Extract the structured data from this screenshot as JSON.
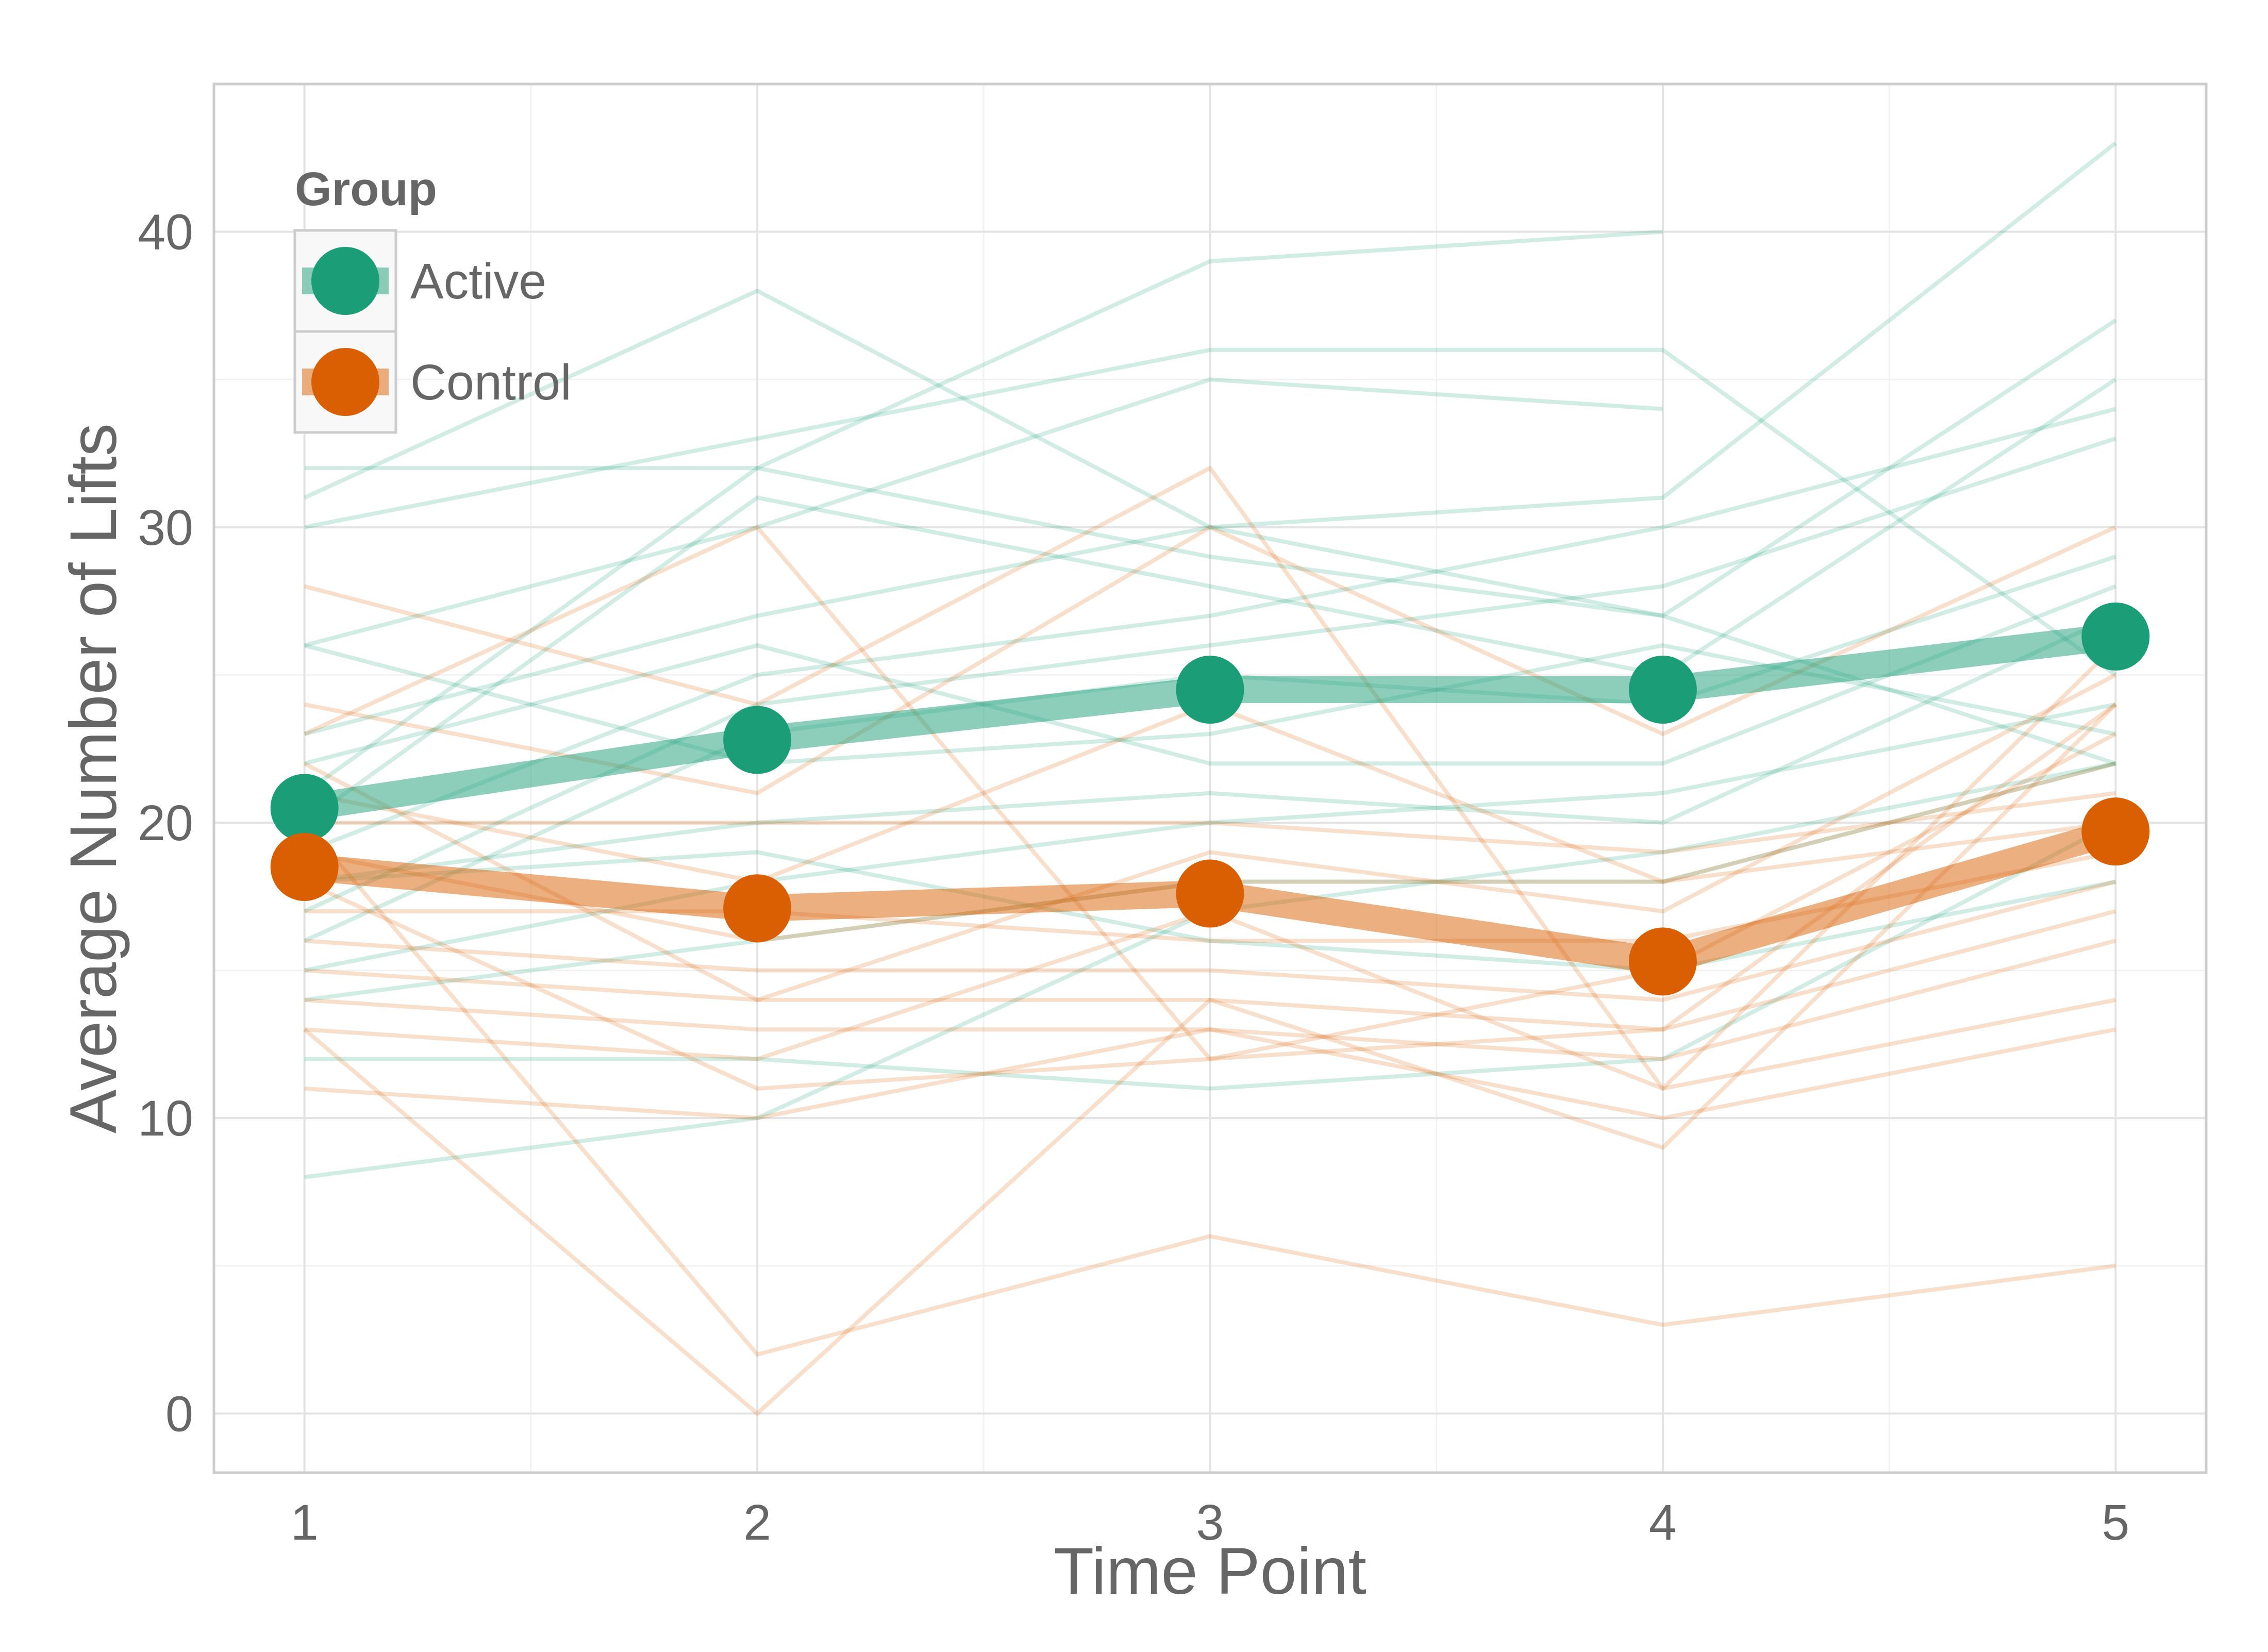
{
  "chart_data": {
    "type": "line",
    "xlabel": "Time Point",
    "ylabel": "Average Number of Lifts",
    "x": [
      1,
      2,
      3,
      4,
      5
    ],
    "x_ticks": [
      "1",
      "2",
      "3",
      "4",
      "5"
    ],
    "xlim": [
      0.8,
      5.2
    ],
    "ylim": [
      -2,
      45
    ],
    "y_ticks": [
      0,
      10,
      20,
      30,
      40
    ],
    "grid": true,
    "legend": {
      "title": "Group",
      "position": "top-left inside",
      "entries": [
        "Active",
        "Control"
      ]
    },
    "colors": {
      "Active": "#1b9e77",
      "Control": "#d95f02"
    },
    "series": [
      {
        "name": "Active",
        "role": "group mean",
        "values": [
          20.5,
          22.8,
          24.5,
          24.5,
          26.3
        ]
      },
      {
        "name": "Control",
        "role": "group mean",
        "values": [
          18.5,
          17.1,
          17.6,
          15.3,
          19.7
        ]
      }
    ],
    "individual_trajectories": {
      "Active": [
        [
          31,
          38,
          30,
          27,
          22
        ],
        [
          32,
          32,
          39,
          40,
          null
        ],
        [
          30,
          33,
          36,
          36,
          25
        ],
        [
          26,
          30,
          35,
          34,
          null
        ],
        [
          23,
          27,
          30,
          31,
          43
        ],
        [
          21,
          32,
          29,
          27,
          37
        ],
        [
          20,
          31,
          28,
          25,
          35
        ],
        [
          19,
          25,
          27,
          30,
          34
        ],
        [
          17,
          24,
          26,
          28,
          33
        ],
        [
          16,
          23,
          25,
          24,
          29
        ],
        [
          22,
          26,
          22,
          22,
          28
        ],
        [
          18,
          20,
          21,
          20,
          27
        ],
        [
          15,
          18,
          20,
          21,
          24
        ],
        [
          14,
          16,
          18,
          18,
          22
        ],
        [
          12,
          12,
          11,
          12,
          20
        ],
        [
          8,
          10,
          17,
          19,
          22
        ],
        [
          26,
          22,
          23,
          26,
          23
        ],
        [
          18,
          19,
          16,
          15,
          18
        ]
      ],
      "Control": [
        [
          28,
          24,
          32,
          11,
          26
        ],
        [
          24,
          21,
          30,
          23,
          30
        ],
        [
          23,
          30,
          12,
          13,
          24
        ],
        [
          21,
          18,
          24,
          18,
          22
        ],
        [
          20,
          20,
          20,
          19,
          21
        ],
        [
          19,
          16,
          18,
          18,
          20
        ],
        [
          17,
          17,
          16,
          16,
          19
        ],
        [
          16,
          15,
          15,
          14,
          18
        ],
        [
          15,
          14,
          14,
          13,
          17
        ],
        [
          14,
          13,
          13,
          12,
          16
        ],
        [
          13,
          12,
          17,
          11,
          14
        ],
        [
          11,
          10,
          13,
          10,
          13
        ],
        [
          13,
          0,
          14,
          9,
          24
        ],
        [
          20,
          2,
          6,
          3,
          5
        ],
        [
          18,
          11,
          12,
          15,
          23
        ],
        [
          22,
          14,
          19,
          17,
          25
        ]
      ]
    }
  }
}
